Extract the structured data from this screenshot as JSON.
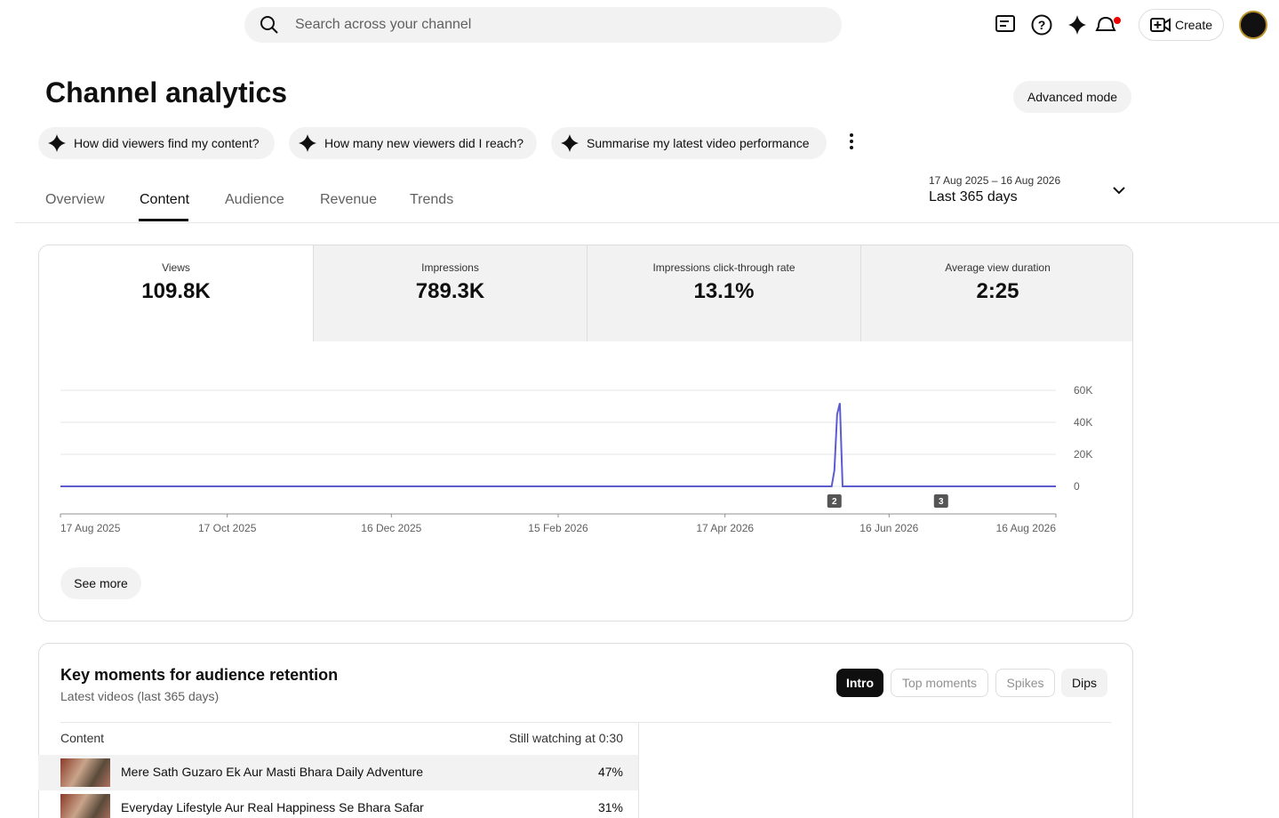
{
  "header": {
    "search_placeholder": "Search across your channel",
    "create": "Create"
  },
  "page": {
    "title": "Channel analytics",
    "advanced_mode": "Advanced mode"
  },
  "suggestions": [
    "How did viewers find my content?",
    "How many new viewers did I reach?",
    "Summarise my latest video performance"
  ],
  "tabs": [
    "Overview",
    "Content",
    "Audience",
    "Revenue",
    "Trends"
  ],
  "date_range": {
    "dates": "17 Aug 2025 – 16 Aug 2026",
    "label": "Last 365 days"
  },
  "metrics": [
    {
      "label": "Views",
      "value": "109.8K"
    },
    {
      "label": "Impressions",
      "value": "789.3K"
    },
    {
      "label": "Impressions click-through rate",
      "value": "13.1%"
    },
    {
      "label": "Average view duration",
      "value": "2:25"
    }
  ],
  "chart_data": {
    "type": "line",
    "x": [
      "2025-08-17",
      "2026-05-26",
      "2026-05-27",
      "2026-05-28",
      "2026-05-29",
      "2026-05-30",
      "2026-08-16"
    ],
    "values": [
      0,
      0,
      10000,
      45000,
      52000,
      0,
      0
    ],
    "color": "#5c5ccf",
    "xlim": [
      "2025-08-17",
      "2026-08-16"
    ],
    "xticks": [
      {
        "value": "2025-08-17",
        "label": "17 Aug 2025"
      },
      {
        "value": "2025-10-17",
        "label": "17 Oct 2025"
      },
      {
        "value": "2025-12-16",
        "label": "16 Dec 2025"
      },
      {
        "value": "2026-02-15",
        "label": "15 Feb 2026"
      },
      {
        "value": "2026-04-17",
        "label": "17 Apr 2026"
      },
      {
        "value": "2026-06-16",
        "label": "16 Jun 2026"
      },
      {
        "value": "2026-08-16",
        "label": "16 Aug 2026"
      }
    ],
    "ylim": [
      0,
      60000
    ],
    "yticks": [
      0,
      {
        "value": 20000,
        "label": "20K"
      },
      {
        "value": 40000,
        "label": "40K"
      },
      {
        "value": 60000,
        "label": "60K"
      }
    ],
    "grid": true,
    "annotations": [
      {
        "x": "2026-05-27",
        "label": "2"
      },
      {
        "x": "2026-07-05",
        "label": "3"
      }
    ]
  },
  "see_more": "See more",
  "retention": {
    "title": "Key moments for audience retention",
    "subtitle": "Latest videos (last 365 days)",
    "filters": [
      "Intro",
      "Top moments",
      "Spikes",
      "Dips"
    ],
    "columns": [
      "Content",
      "Still watching at 0:30"
    ],
    "rows": [
      {
        "title": "Mere Sath Guzaro Ek Aur Masti Bhara Daily Adventure",
        "value": "47%"
      },
      {
        "title": "Everyday Lifestyle Aur Real Happiness Se Bhara Safar",
        "value": "31%"
      }
    ]
  }
}
